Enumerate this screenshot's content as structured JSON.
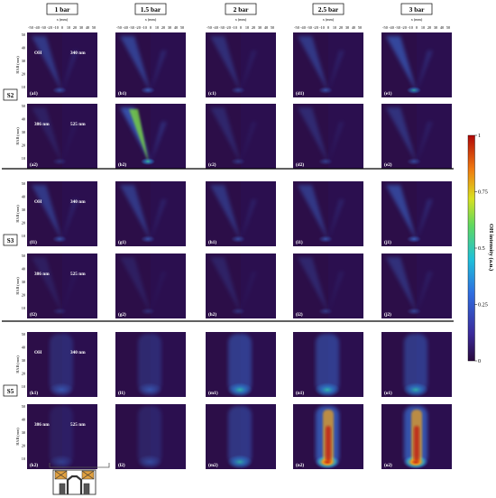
{
  "columns": [
    "1 bar",
    "1.5 bar",
    "2 bar",
    "2.5 bar",
    "3 bar"
  ],
  "x_axis": {
    "label": "x (mm)",
    "ticks": [
      "-50",
      "-40",
      "-30",
      "-20",
      "-10",
      "0",
      "10",
      "20",
      "30",
      "40",
      "50"
    ]
  },
  "y_axis": {
    "label": "HAB (mm)",
    "ticks": [
      "50",
      "40",
      "30",
      "20",
      "10"
    ]
  },
  "groups": [
    {
      "name": "S2",
      "rows": [
        {
          "left_text": "OH",
          "right_text": "340 nm",
          "labels": [
            "(a1)",
            "(b1)",
            "(c1)",
            "(d1)",
            "(e1)"
          ],
          "intensity": [
            0.35,
            0.45,
            0.22,
            0.35,
            0.55
          ]
        },
        {
          "left_text": "386 nm",
          "right_text": "525 nm",
          "labels": [
            "(a2)",
            "(b2)",
            "(c2)",
            "(d2)",
            "(e2)"
          ],
          "intensity": [
            0.05,
            0.65,
            0.12,
            0.18,
            0.28
          ]
        }
      ]
    },
    {
      "name": "S3",
      "rows": [
        {
          "left_text": "OH",
          "right_text": "340 nm",
          "labels": [
            "(f1)",
            "(g1)",
            "(h1)",
            "(i1)",
            "(j1)"
          ],
          "intensity": [
            0.35,
            0.35,
            0.3,
            0.35,
            0.5
          ]
        },
        {
          "left_text": "386 nm",
          "right_text": "525 nm",
          "labels": [
            "(f2)",
            "(g2)",
            "(h2)",
            "(i2)",
            "(j2)"
          ],
          "intensity": [
            0.02,
            0.04,
            0.08,
            0.14,
            0.25
          ]
        }
      ]
    },
    {
      "name": "S5",
      "rows": [
        {
          "left_text": "OH",
          "right_text": "340 nm",
          "labels": [
            "(k1)",
            "(l1)",
            "(m1)",
            "(n1)",
            "(o1)"
          ],
          "intensity": [
            0.3,
            0.3,
            0.6,
            0.6,
            0.55
          ]
        },
        {
          "left_text": "386 nm",
          "right_text": "525 nm",
          "labels": [
            "(k2)",
            "(l2)",
            "(m2)",
            "(n2)",
            "(o2)"
          ],
          "intensity": [
            0.12,
            0.2,
            0.5,
            0.95,
            0.95
          ]
        }
      ]
    }
  ],
  "colorbar": {
    "label": "OH intensity (a.u.)",
    "ticks": [
      "1",
      "0.75",
      "0.5",
      "0.25",
      "0"
    ]
  }
}
